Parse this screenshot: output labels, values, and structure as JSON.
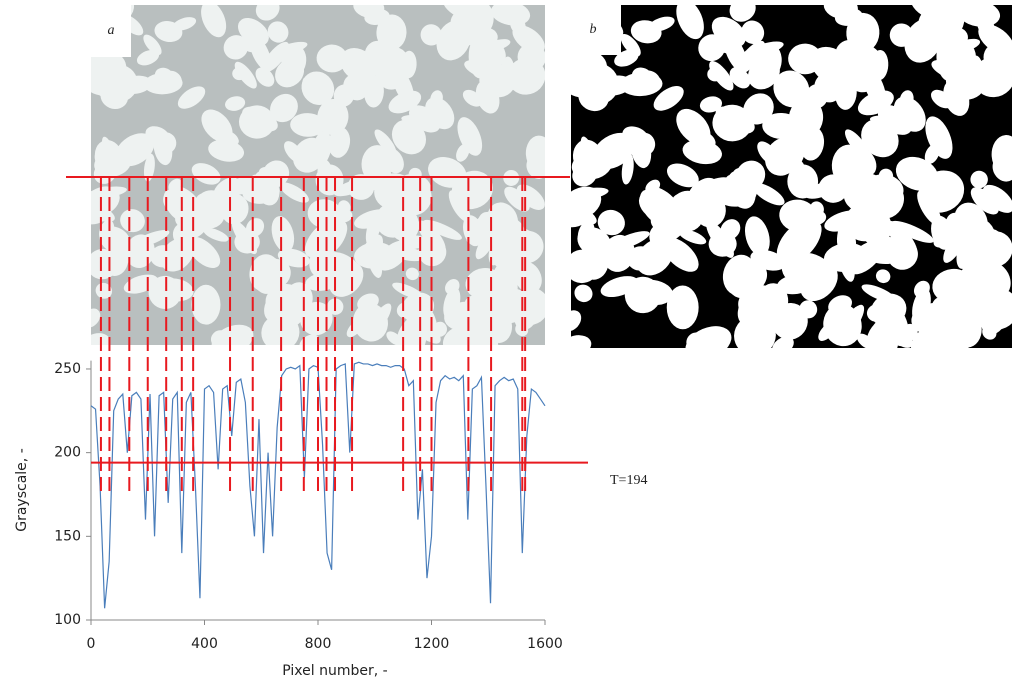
{
  "chart_data": {
    "type": "line",
    "panel_labels": [
      "a",
      "b"
    ],
    "xlabel": "Pixel number, -",
    "ylabel": "Grayscale, -",
    "annotation": "T=194",
    "threshold": 194,
    "threshold_color": "#e8191f",
    "marker_x": [
      35,
      65,
      135,
      200,
      265,
      320,
      360,
      490,
      570,
      670,
      750,
      800,
      830,
      860,
      920,
      1100,
      1160,
      1200,
      1330,
      1410,
      1520,
      1530
    ],
    "xlim": [
      0,
      1600
    ],
    "ylim": [
      100,
      255
    ],
    "xticks": [
      0,
      400,
      800,
      1200,
      1600
    ],
    "yticks": [
      100,
      150,
      200,
      250
    ],
    "x": [
      0,
      16,
      32,
      48,
      64,
      80,
      96,
      112,
      128,
      144,
      160,
      176,
      192,
      208,
      224,
      240,
      256,
      272,
      288,
      304,
      320,
      336,
      352,
      368,
      384,
      400,
      416,
      432,
      448,
      464,
      480,
      496,
      512,
      528,
      544,
      560,
      576,
      592,
      608,
      624,
      640,
      656,
      672,
      688,
      704,
      720,
      736,
      752,
      768,
      784,
      800,
      816,
      832,
      848,
      864,
      880,
      896,
      912,
      928,
      944,
      960,
      976,
      992,
      1008,
      1024,
      1040,
      1056,
      1072,
      1088,
      1104,
      1120,
      1136,
      1152,
      1168,
      1184,
      1200,
      1216,
      1232,
      1248,
      1264,
      1280,
      1296,
      1312,
      1328,
      1344,
      1360,
      1376,
      1392,
      1408,
      1424,
      1440,
      1456,
      1472,
      1488,
      1504,
      1520,
      1536,
      1552,
      1568,
      1584,
      1600
    ],
    "series": [
      {
        "color": "#4a7ebb",
        "values": [
          228,
          226,
          180,
          107,
          135,
          225,
          232,
          235,
          200,
          234,
          236,
          232,
          160,
          235,
          150,
          234,
          236,
          170,
          232,
          236,
          140,
          230,
          236,
          180,
          113,
          238,
          240,
          236,
          190,
          238,
          240,
          210,
          242,
          244,
          230,
          180,
          150,
          220,
          140,
          200,
          150,
          215,
          246,
          250,
          251,
          250,
          252,
          185,
          250,
          252,
          251,
          205,
          140,
          130,
          250,
          252,
          253,
          200,
          253,
          254,
          253,
          253,
          252,
          253,
          252,
          252,
          251,
          252,
          252,
          250,
          240,
          243,
          160,
          190,
          125,
          150,
          230,
          243,
          246,
          244,
          245,
          243,
          246,
          160,
          238,
          240,
          245,
          180,
          110,
          240,
          243,
          245,
          243,
          244,
          238,
          140,
          210,
          238,
          236,
          232,
          228
        ]
      }
    ]
  }
}
